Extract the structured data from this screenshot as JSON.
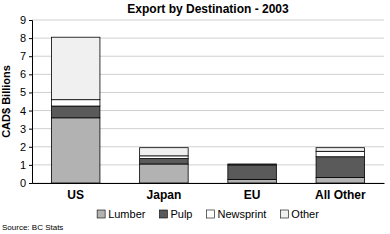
{
  "chart_data": {
    "type": "bar",
    "title": "Export by Destination - 2003",
    "y_label": "CAD$ Billions",
    "categories": [
      "US",
      "Japan",
      "EU",
      "All Other"
    ],
    "series": [
      {
        "name": "Lumber",
        "color": "#b2b2b2",
        "values": [
          3.6,
          1.05,
          0.2,
          0.3
        ]
      },
      {
        "name": "Pulp",
        "color": "#5a5a5a",
        "values": [
          0.65,
          0.3,
          0.8,
          1.15
        ]
      },
      {
        "name": "Newsprint",
        "color": "#ffffff",
        "values": [
          0.35,
          0.15,
          0.05,
          0.3
        ]
      },
      {
        "name": "Other",
        "color": "#f0f0f0",
        "values": [
          3.45,
          0.45,
          0,
          0.2
        ]
      }
    ],
    "ylim": [
      0,
      9
    ],
    "yticks": [
      0,
      1,
      2,
      3,
      4,
      5,
      6,
      7,
      8,
      9
    ],
    "grid": true,
    "stacked": true,
    "legend": "bottom",
    "annotations": [
      "Source: BC Stats"
    ]
  }
}
